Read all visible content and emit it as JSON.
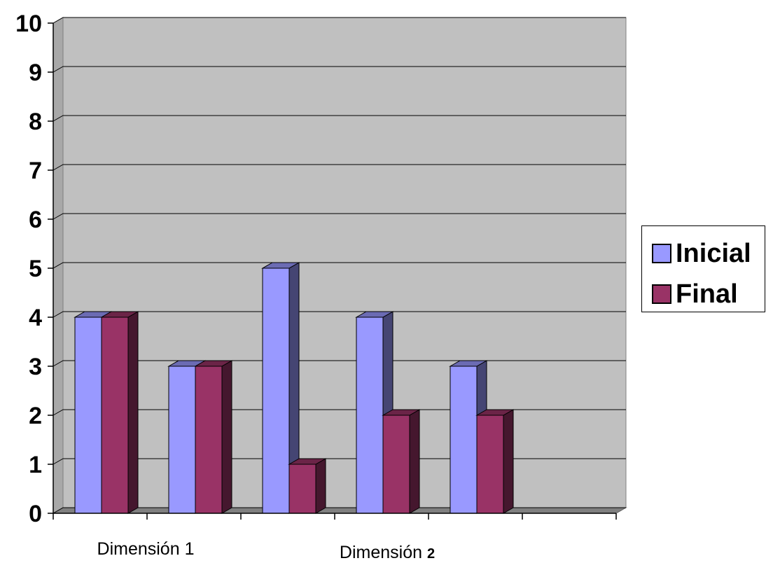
{
  "chart_data": {
    "type": "bar",
    "style": "3d-clustered-column",
    "ylim": [
      0,
      10
    ],
    "yticks": [
      "0",
      "1",
      "2",
      "3",
      "4",
      "5",
      "6",
      "7",
      "8",
      "9",
      "10"
    ],
    "grid": true,
    "legend_position": "right",
    "group_count": 6,
    "series": [
      {
        "name": "Inicial",
        "color": "#9999ff",
        "values": [
          4,
          3,
          5,
          4,
          3,
          null
        ]
      },
      {
        "name": "Final",
        "color": "#993366",
        "values": [
          4,
          3,
          1,
          2,
          2,
          null
        ]
      }
    ],
    "category_labels": [
      {
        "text": "Dimensión 1",
        "bold_suffix": ""
      },
      {
        "text": "Dimensión ",
        "bold_suffix": "2"
      }
    ],
    "plot_background": "#c0c0c0"
  }
}
